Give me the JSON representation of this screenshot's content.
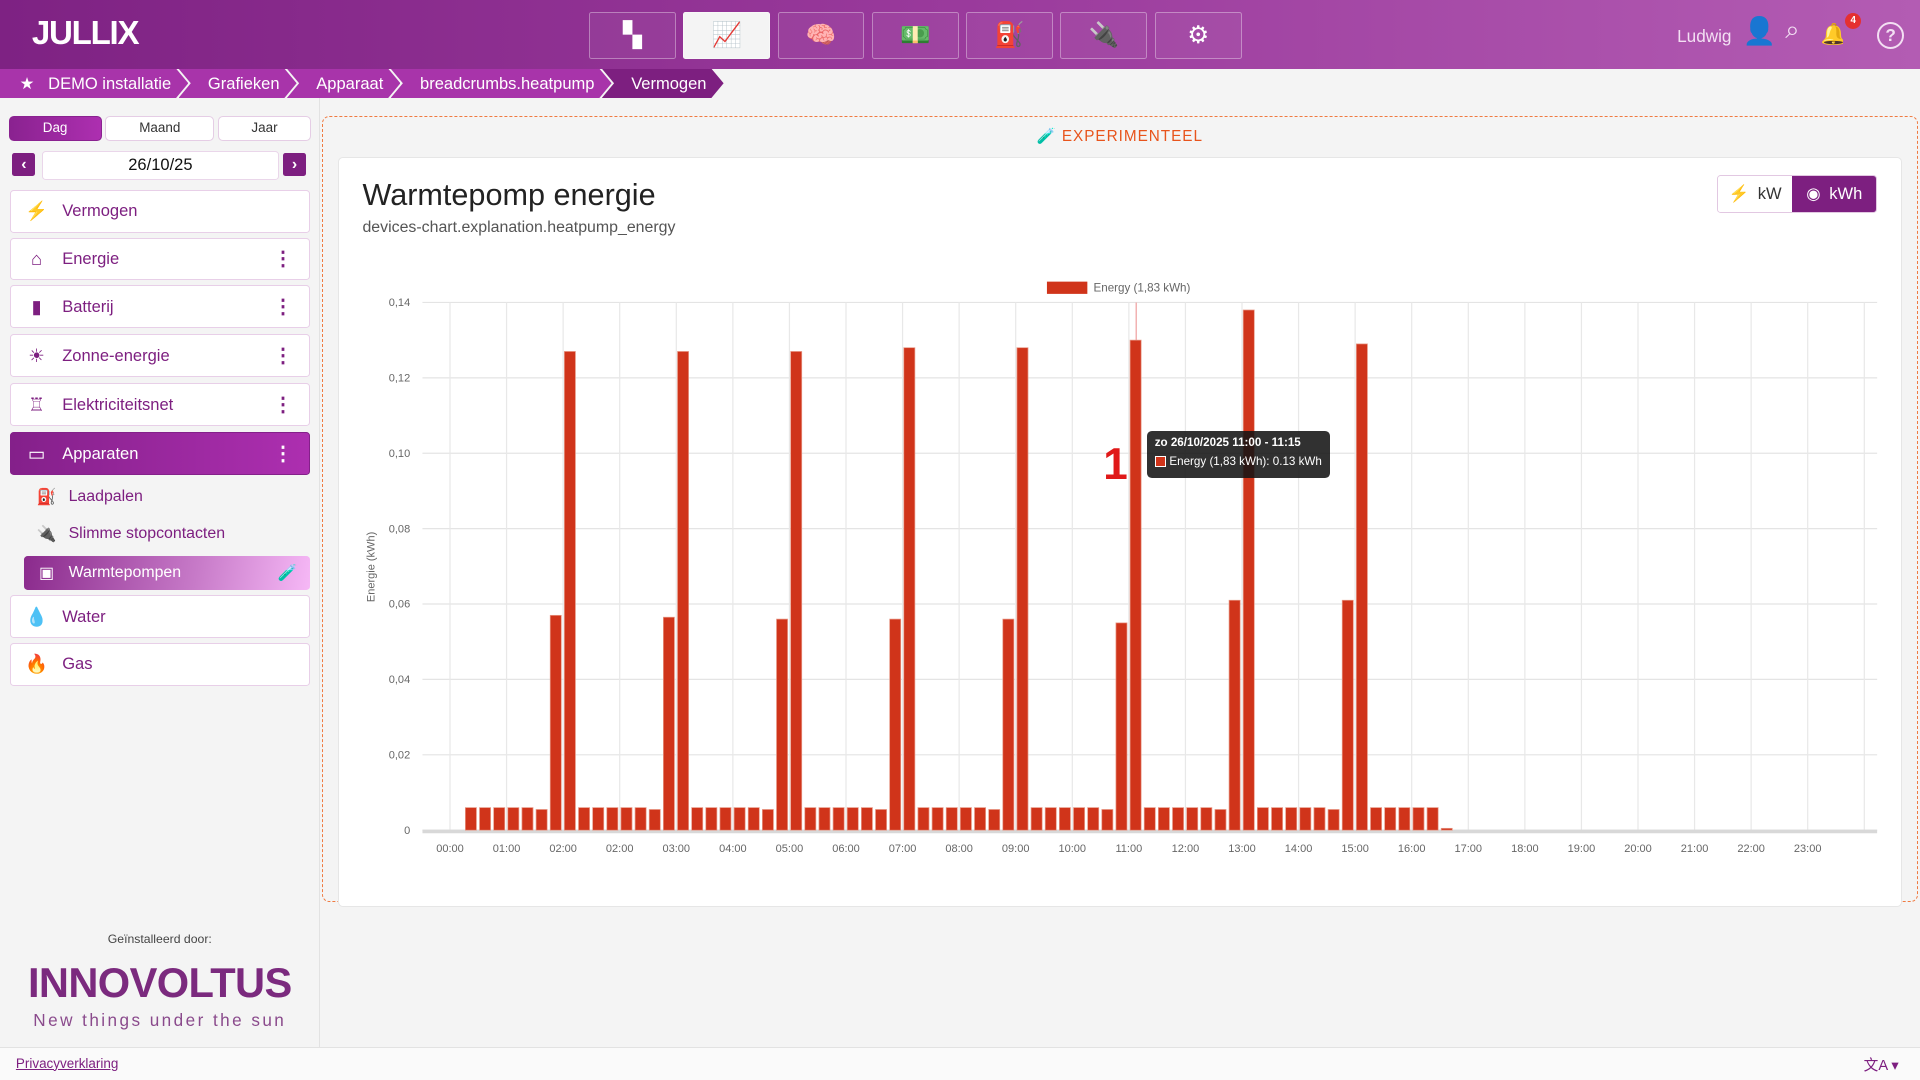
{
  "header": {
    "logo": "JULLIX",
    "user": "Ludwig",
    "notifications": "4",
    "nav": [
      {
        "icon": "dashboard-icon",
        "glyph": "▚"
      },
      {
        "icon": "chart-line-icon",
        "glyph": "📈"
      },
      {
        "icon": "brain-icon",
        "glyph": "🧠"
      },
      {
        "icon": "money-icon",
        "glyph": "💵"
      },
      {
        "icon": "charging-station-icon",
        "glyph": "⛽"
      },
      {
        "icon": "plug-icon",
        "glyph": "🔌"
      },
      {
        "icon": "gear-icon",
        "glyph": "⚙"
      }
    ],
    "active_nav": 1
  },
  "breadcrumbs": [
    "DEMO installatie",
    "Grafieken",
    "Apparaat",
    "breadcrumbs.heatpump",
    "Vermogen"
  ],
  "sidebar": {
    "periods": [
      "Dag",
      "Maand",
      "Jaar"
    ],
    "active_period": "Dag",
    "date": "26/10/25",
    "items": [
      {
        "label": "Vermogen",
        "icon": "bolt-icon"
      },
      {
        "label": "Energie",
        "icon": "house-bolt-icon"
      },
      {
        "label": "Batterij",
        "icon": "battery-icon"
      },
      {
        "label": "Zonne-energie",
        "icon": "sun-icon"
      },
      {
        "label": "Elektriciteitsnet",
        "icon": "power-tower-icon"
      },
      {
        "label": "Apparaten",
        "icon": "devices-icon"
      }
    ],
    "subitems": [
      {
        "label": "Laadpalen",
        "icon": "charging-station-icon"
      },
      {
        "label": "Slimme stopcontacten",
        "icon": "plug-icon"
      },
      {
        "label": "Warmtepompen",
        "icon": "heatpump-icon"
      }
    ],
    "items2": [
      {
        "label": "Water",
        "icon": "water-drop-icon"
      },
      {
        "label": "Gas",
        "icon": "flame-icon"
      }
    ],
    "installer_label": "Geïnstalleerd door:",
    "installer_logo": "INNOVOLTUS",
    "installer_tagline": "New things under the sun"
  },
  "main": {
    "experimental": "EXPERIMENTEEL",
    "title": "Warmtepomp energie",
    "subtitle": "devices-chart.explanation.heatpump_energy",
    "unit_buttons": [
      "kW",
      "kWh"
    ],
    "active_unit": "kWh",
    "tooltip": {
      "title": "zo 26/10/2025 11:00 - 11:15",
      "line": "Energy (1,83 kWh): 0.13 kWh"
    },
    "annotation": "1"
  },
  "footer": {
    "privacy": "Privacyverklaring",
    "language_icon": "translate-icon"
  },
  "chart_data": {
    "type": "bar",
    "ylabel": "Energie (kWh)",
    "ylim": [
      0,
      0.14
    ],
    "yticks": [
      "0",
      "0,02",
      "0,04",
      "0,06",
      "0,08",
      "0,10",
      "0,12",
      "0,14"
    ],
    "xticks": [
      "00:00",
      "01:00",
      "02:00",
      "02:00",
      "03:00",
      "04:00",
      "05:00",
      "06:00",
      "07:00",
      "08:00",
      "09:00",
      "10:00",
      "11:00",
      "12:00",
      "13:00",
      "14:00",
      "15:00",
      "16:00",
      "17:00",
      "18:00",
      "19:00",
      "20:00",
      "21:00",
      "22:00",
      "23:00"
    ],
    "legend": "top",
    "grid": true,
    "color": "#d0341a",
    "series": [
      {
        "name": "Energy (1,83 kWh)",
        "x": [
          "00:00",
          "00:15",
          "00:30",
          "00:45",
          "01:00",
          "01:15",
          "01:30",
          "01:45",
          "02:00",
          "02:15",
          "02:30",
          "02:45",
          "02:00",
          "02:15",
          "02:30",
          "02:45",
          "03:00",
          "03:15",
          "03:30",
          "03:45",
          "04:00",
          "04:15",
          "04:30",
          "04:45",
          "05:00",
          "05:15",
          "05:30",
          "05:45",
          "06:00",
          "06:15",
          "06:30",
          "06:45",
          "07:00",
          "07:15",
          "07:30",
          "07:45",
          "08:00",
          "08:15",
          "08:30",
          "08:45",
          "09:00",
          "09:15",
          "09:30",
          "09:45",
          "10:00",
          "10:15",
          "10:30",
          "10:45",
          "11:00",
          "11:15",
          "11:30",
          "11:45",
          "12:00",
          "12:15",
          "12:30",
          "12:45",
          "13:00",
          "13:15",
          "13:30",
          "13:45",
          "14:00",
          "14:15",
          "14:30",
          "14:45",
          "15:00",
          "15:15",
          "15:30",
          "15:45",
          "16:00",
          "16:15",
          "16:30"
        ],
        "values": [
          0,
          0.006,
          0.006,
          0.006,
          0.006,
          0.006,
          0.0055,
          0.057,
          0.127,
          0.006,
          0.006,
          0.006,
          0.006,
          0.006,
          0.0055,
          0.0565,
          0.127,
          0.006,
          0.006,
          0.006,
          0.006,
          0.006,
          0.0055,
          0.056,
          0.127,
          0.006,
          0.006,
          0.006,
          0.006,
          0.006,
          0.0055,
          0.056,
          0.128,
          0.006,
          0.006,
          0.006,
          0.006,
          0.006,
          0.0055,
          0.056,
          0.128,
          0.006,
          0.006,
          0.006,
          0.006,
          0.006,
          0.0055,
          0.055,
          0.13,
          0.006,
          0.006,
          0.006,
          0.006,
          0.006,
          0.0055,
          0.061,
          0.138,
          0.006,
          0.006,
          0.006,
          0.006,
          0.006,
          0.0055,
          0.061,
          0.129,
          0.006,
          0.006,
          0.006,
          0.006,
          0.006,
          0.0005
        ]
      }
    ]
  }
}
